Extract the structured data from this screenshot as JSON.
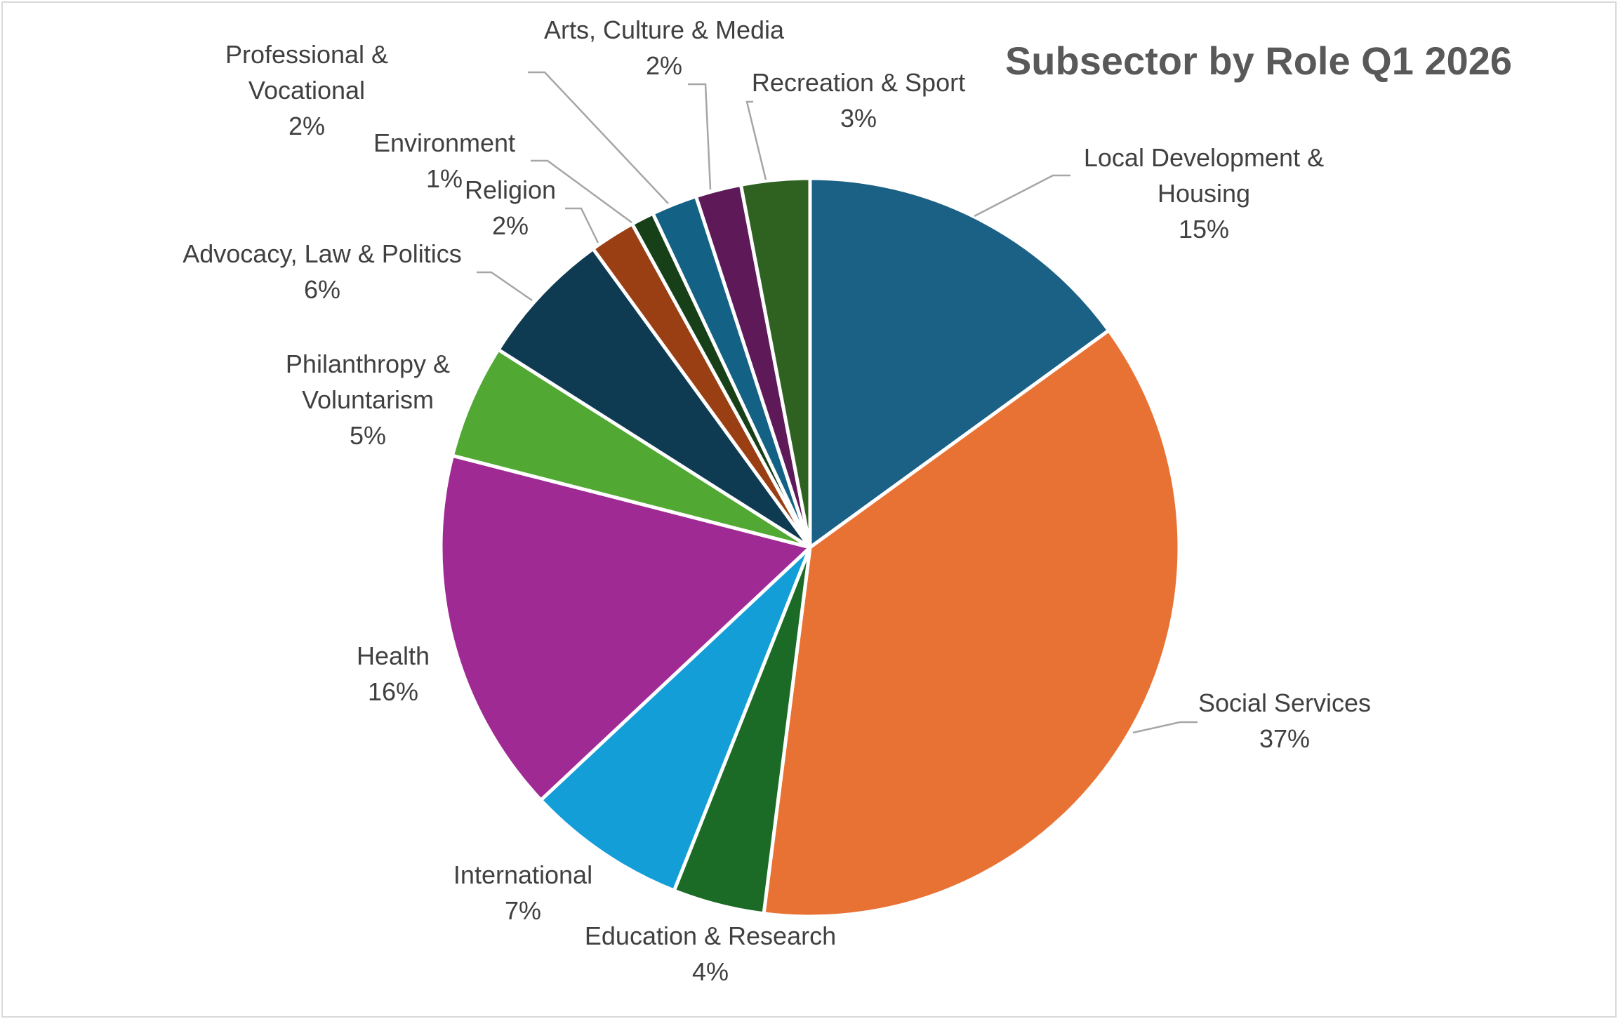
{
  "chart_data": {
    "type": "pie",
    "title": "Subsector by Role Q1 2026",
    "data_labels": "category name and percentage, outside end with leader lines",
    "start_angle_deg": 0,
    "direction": "clockwise",
    "slices": [
      {
        "name": "Local Development & Housing",
        "label_lines": [
          "Local Development &",
          "Housing"
        ],
        "value": 15,
        "label": "15%",
        "color": "#1a6185"
      },
      {
        "name": "Social Services",
        "label_lines": [
          "Social Services"
        ],
        "value": 37,
        "label": "37%",
        "color": "#e87234"
      },
      {
        "name": "Education & Research",
        "label_lines": [
          "Education & Research"
        ],
        "value": 4,
        "label": "4%",
        "color": "#1b6b27"
      },
      {
        "name": "International",
        "label_lines": [
          "International"
        ],
        "value": 7,
        "label": "7%",
        "color": "#149ed8"
      },
      {
        "name": "Health",
        "label_lines": [
          "Health"
        ],
        "value": 16,
        "label": "16%",
        "color": "#a02a94"
      },
      {
        "name": "Philanthropy & Voluntarism",
        "label_lines": [
          "Philanthropy &",
          "Voluntarism"
        ],
        "value": 5,
        "label": "5%",
        "color": "#51a833"
      },
      {
        "name": "Advocacy, Law & Politics",
        "label_lines": [
          "Advocacy, Law & Politics"
        ],
        "value": 6,
        "label": "6%",
        "color": "#0e3a52"
      },
      {
        "name": "Religion",
        "label_lines": [
          "Religion"
        ],
        "value": 2,
        "label": "2%",
        "color": "#9a3e14"
      },
      {
        "name": "Environment",
        "label_lines": [
          "Environment"
        ],
        "value": 1,
        "label": "1%",
        "color": "#173f18"
      },
      {
        "name": "Professional & Vocational",
        "label_lines": [
          "Professional &",
          "Vocational"
        ],
        "value": 2,
        "label": "2%",
        "color": "#136184"
      },
      {
        "name": "Arts, Culture & Media",
        "label_lines": [
          "Arts, Culture & Media"
        ],
        "value": 2,
        "label": "2%",
        "color": "#5e1a58"
      },
      {
        "name": "Recreation & Sport",
        "label_lines": [
          "Recreation & Sport"
        ],
        "value": 3,
        "label": "3%",
        "color": "#2f6220"
      }
    ]
  }
}
